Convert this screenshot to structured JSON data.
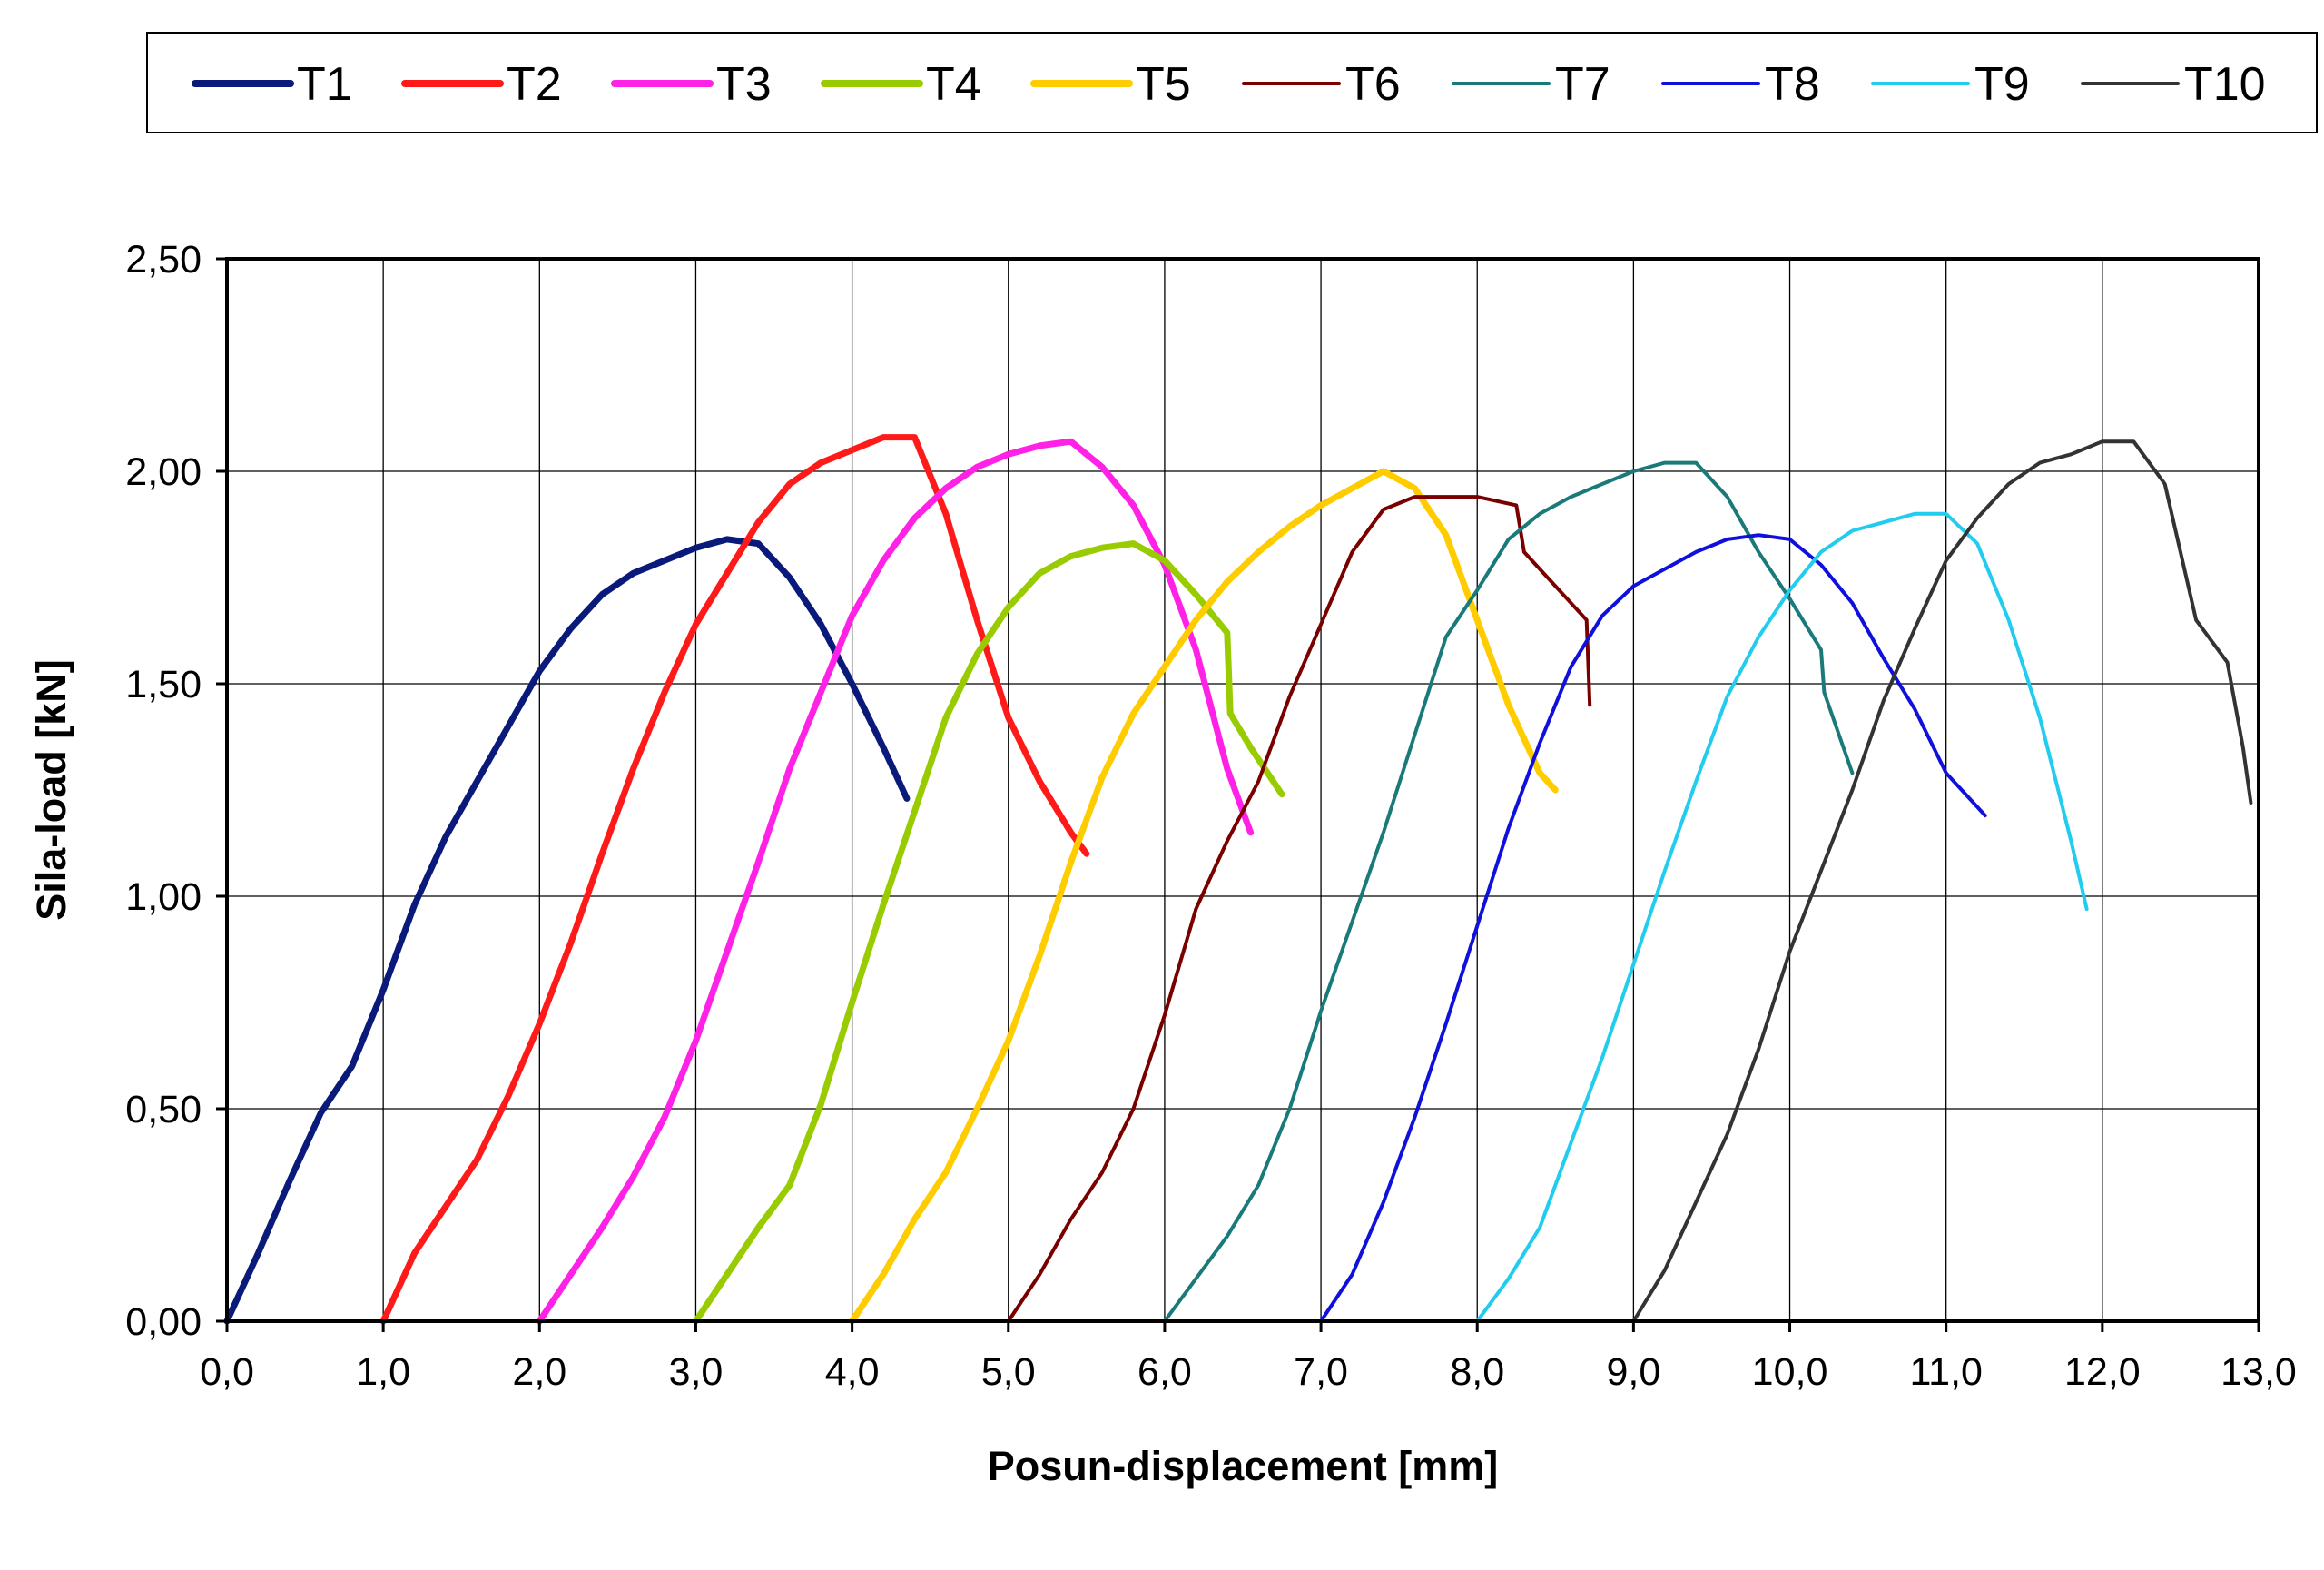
{
  "chart_data": {
    "type": "line",
    "title": "",
    "xlabel": "Posun-displacement [mm]",
    "ylabel": "Sila-load [kN]",
    "xlim": [
      0,
      13
    ],
    "ylim": [
      0,
      2.5
    ],
    "x_ticks": [
      "0,0",
      "1,0",
      "2,0",
      "3,0",
      "4,0",
      "5,0",
      "6,0",
      "7,0",
      "8,0",
      "9,0",
      "10,0",
      "11,0",
      "12,0",
      "13,0"
    ],
    "y_ticks": [
      "0,00",
      "0,50",
      "1,00",
      "1,50",
      "2,00",
      "2,50"
    ],
    "grid": true,
    "legend_position": "top",
    "series": [
      {
        "name": "T1",
        "color": "#0a1a7a",
        "width": "thick",
        "x": [
          0.0,
          0.2,
          0.4,
          0.6,
          0.8,
          1.0,
          1.2,
          1.4,
          1.6,
          1.8,
          2.0,
          2.2,
          2.4,
          2.6,
          2.8,
          3.0,
          3.2,
          3.4,
          3.6,
          3.8,
          4.0,
          4.2,
          4.35
        ],
        "y": [
          0.0,
          0.16,
          0.33,
          0.49,
          0.6,
          0.78,
          0.98,
          1.14,
          1.27,
          1.4,
          1.53,
          1.63,
          1.71,
          1.76,
          1.79,
          1.82,
          1.84,
          1.83,
          1.75,
          1.64,
          1.5,
          1.35,
          1.23
        ]
      },
      {
        "name": "T2",
        "color": "#ff1a1a",
        "width": "thick",
        "x": [
          1.0,
          1.2,
          1.4,
          1.6,
          1.8,
          2.0,
          2.2,
          2.4,
          2.6,
          2.8,
          3.0,
          3.2,
          3.4,
          3.6,
          3.8,
          4.0,
          4.2,
          4.4,
          4.6,
          4.8,
          5.0,
          5.2,
          5.4,
          5.5
        ],
        "y": [
          0.0,
          0.16,
          0.27,
          0.38,
          0.53,
          0.7,
          0.89,
          1.1,
          1.3,
          1.48,
          1.64,
          1.76,
          1.88,
          1.97,
          2.02,
          2.05,
          2.08,
          2.08,
          1.9,
          1.65,
          1.42,
          1.27,
          1.15,
          1.1
        ]
      },
      {
        "name": "T3",
        "color": "#ff22e6",
        "width": "thick",
        "x": [
          2.0,
          2.2,
          2.4,
          2.6,
          2.8,
          3.0,
          3.2,
          3.4,
          3.6,
          3.8,
          4.0,
          4.2,
          4.4,
          4.6,
          4.8,
          5.0,
          5.2,
          5.4,
          5.6,
          5.8,
          6.0,
          6.2,
          6.4,
          6.55
        ],
        "y": [
          0.0,
          0.11,
          0.22,
          0.34,
          0.48,
          0.66,
          0.87,
          1.08,
          1.3,
          1.48,
          1.66,
          1.79,
          1.89,
          1.96,
          2.01,
          2.04,
          2.06,
          2.07,
          2.01,
          1.92,
          1.78,
          1.58,
          1.3,
          1.15
        ]
      },
      {
        "name": "T4",
        "color": "#99cc00",
        "width": "thick",
        "x": [
          3.0,
          3.2,
          3.4,
          3.6,
          3.8,
          4.0,
          4.2,
          4.4,
          4.6,
          4.8,
          5.0,
          5.2,
          5.4,
          5.6,
          5.8,
          6.0,
          6.2,
          6.4,
          6.42,
          6.55,
          6.75
        ],
        "y": [
          0.0,
          0.11,
          0.22,
          0.32,
          0.51,
          0.75,
          0.98,
          1.2,
          1.42,
          1.57,
          1.68,
          1.76,
          1.8,
          1.82,
          1.83,
          1.79,
          1.71,
          1.62,
          1.43,
          1.35,
          1.24
        ]
      },
      {
        "name": "T5",
        "color": "#ffcc00",
        "width": "thick",
        "x": [
          4.0,
          4.2,
          4.4,
          4.6,
          4.8,
          5.0,
          5.2,
          5.4,
          5.6,
          5.8,
          6.0,
          6.2,
          6.4,
          6.6,
          6.8,
          7.0,
          7.2,
          7.4,
          7.6,
          7.8,
          8.0,
          8.2,
          8.4,
          8.5
        ],
        "y": [
          0.0,
          0.11,
          0.24,
          0.35,
          0.5,
          0.66,
          0.86,
          1.08,
          1.28,
          1.43,
          1.54,
          1.65,
          1.74,
          1.81,
          1.87,
          1.92,
          1.96,
          2.0,
          1.96,
          1.85,
          1.65,
          1.45,
          1.29,
          1.25
        ]
      },
      {
        "name": "T6",
        "color": "#7a0000",
        "width": "thin",
        "x": [
          5.0,
          5.2,
          5.4,
          5.6,
          5.8,
          6.0,
          6.2,
          6.4,
          6.6,
          6.8,
          7.0,
          7.2,
          7.4,
          7.6,
          7.8,
          8.0,
          8.25,
          8.3,
          8.7,
          8.72
        ],
        "y": [
          0.0,
          0.11,
          0.24,
          0.35,
          0.5,
          0.72,
          0.97,
          1.13,
          1.27,
          1.47,
          1.64,
          1.81,
          1.91,
          1.94,
          1.94,
          1.94,
          1.92,
          1.81,
          1.65,
          1.45
        ]
      },
      {
        "name": "T7",
        "color": "#1a7a7a",
        "width": "thin",
        "x": [
          6.0,
          6.2,
          6.4,
          6.6,
          6.8,
          7.0,
          7.2,
          7.4,
          7.6,
          7.8,
          8.0,
          8.2,
          8.4,
          8.6,
          8.8,
          9.0,
          9.2,
          9.4,
          9.6,
          9.8,
          10.0,
          10.2,
          10.22,
          10.4
        ],
        "y": [
          0.0,
          0.1,
          0.2,
          0.32,
          0.5,
          0.73,
          0.94,
          1.15,
          1.38,
          1.61,
          1.72,
          1.84,
          1.9,
          1.94,
          1.97,
          2.0,
          2.02,
          2.02,
          1.94,
          1.81,
          1.7,
          1.58,
          1.48,
          1.29
        ]
      },
      {
        "name": "T8",
        "color": "#1010dd",
        "width": "thin",
        "x": [
          7.0,
          7.2,
          7.4,
          7.6,
          7.8,
          8.0,
          8.2,
          8.4,
          8.6,
          8.8,
          9.0,
          9.2,
          9.4,
          9.6,
          9.8,
          10.0,
          10.2,
          10.4,
          10.6,
          10.8,
          11.0,
          11.2,
          11.25
        ],
        "y": [
          0.0,
          0.11,
          0.28,
          0.48,
          0.7,
          0.93,
          1.16,
          1.36,
          1.54,
          1.66,
          1.73,
          1.77,
          1.81,
          1.84,
          1.85,
          1.84,
          1.78,
          1.69,
          1.56,
          1.44,
          1.29,
          1.21,
          1.19
        ]
      },
      {
        "name": "T9",
        "color": "#22ccee",
        "width": "thin",
        "x": [
          8.0,
          8.2,
          8.4,
          8.6,
          8.8,
          9.0,
          9.2,
          9.4,
          9.6,
          9.8,
          10.0,
          10.2,
          10.4,
          10.6,
          10.8,
          11.0,
          11.2,
          11.4,
          11.6,
          11.8,
          11.9
        ],
        "y": [
          0.0,
          0.1,
          0.22,
          0.42,
          0.62,
          0.84,
          1.06,
          1.27,
          1.47,
          1.61,
          1.72,
          1.81,
          1.86,
          1.88,
          1.9,
          1.9,
          1.83,
          1.65,
          1.42,
          1.13,
          0.97
        ]
      },
      {
        "name": "T10",
        "color": "#333333",
        "width": "thin",
        "x": [
          9.0,
          9.2,
          9.4,
          9.6,
          9.8,
          10.0,
          10.2,
          10.4,
          10.6,
          10.8,
          11.0,
          11.2,
          11.4,
          11.6,
          11.8,
          12.0,
          12.2,
          12.4,
          12.6,
          12.8,
          12.9,
          12.95
        ],
        "y": [
          0.0,
          0.12,
          0.28,
          0.44,
          0.64,
          0.87,
          1.06,
          1.25,
          1.46,
          1.63,
          1.79,
          1.89,
          1.97,
          2.02,
          2.04,
          2.07,
          2.07,
          1.97,
          1.65,
          1.55,
          1.35,
          1.22
        ]
      }
    ]
  }
}
